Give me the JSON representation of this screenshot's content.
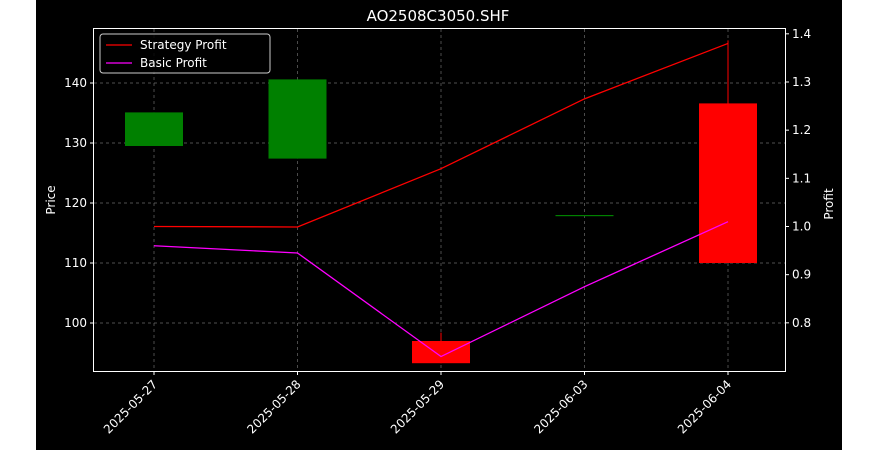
{
  "chart_data": {
    "type": "candlestick",
    "title": "AO2508C3050.SHF",
    "xlabel": "",
    "ylabel": "Price",
    "y2label": "Profit",
    "categories": [
      "2025-05-27",
      "2025-05-28",
      "2025-05-29",
      "2025-06-03",
      "2025-06-04"
    ],
    "ylim": [
      92,
      149
    ],
    "y2lim": [
      0.7,
      1.41
    ],
    "yticks": [
      100,
      110,
      120,
      130,
      140
    ],
    "y2ticks": [
      0.8,
      0.9,
      1.0,
      1.1,
      1.2,
      1.3,
      1.4
    ],
    "candles": [
      {
        "open": 129.5,
        "high": 135.1,
        "low": 129.5,
        "close": 135.1
      },
      {
        "open": 127.4,
        "high": 140.6,
        "low": 127.4,
        "close": 140.6
      },
      {
        "open": 97.0,
        "high": 98.4,
        "low": 93.3,
        "close": 93.3
      },
      {
        "open": 118.0,
        "high": 118.0,
        "low": 118.0,
        "close": 118.0
      },
      {
        "open": 136.6,
        "high": 147.1,
        "low": 110.0,
        "close": 110.0
      }
    ],
    "series": [
      {
        "name": "Strategy Profit",
        "axis": "right",
        "color": "#ff0000",
        "values": [
          1.0,
          0.999,
          1.12,
          1.265,
          1.38
        ]
      },
      {
        "name": "Basic Profit",
        "axis": "right",
        "color": "#ff00ff",
        "values": [
          0.96,
          0.945,
          0.73,
          0.875,
          1.01
        ]
      }
    ],
    "up_color": "#008000",
    "down_color": "#ff0000",
    "grid": true,
    "legend_position": "top-left"
  }
}
